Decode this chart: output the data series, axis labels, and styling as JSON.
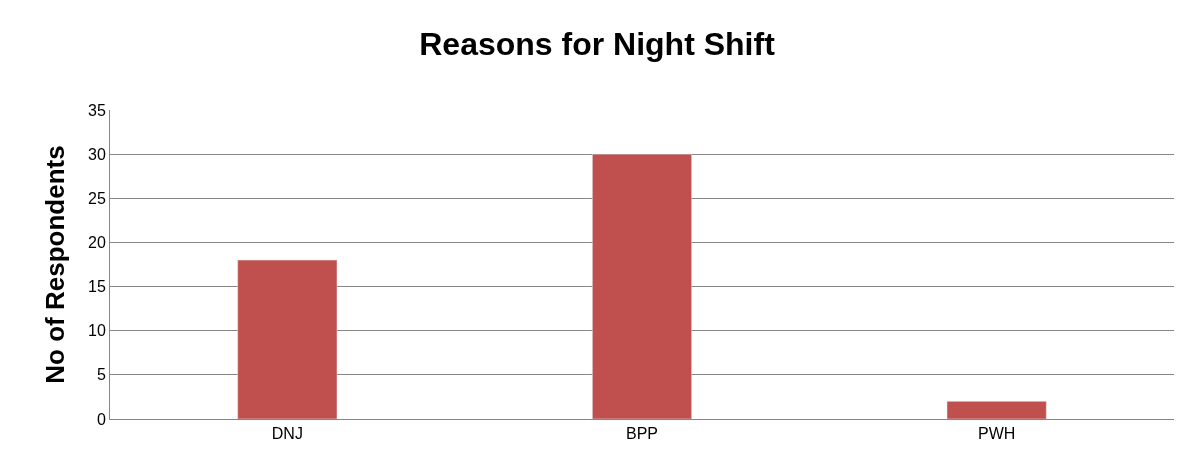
{
  "chart_data": {
    "type": "bar",
    "title": "Reasons for Night Shift",
    "ylabel": "No of Respondents",
    "categories": [
      "DNJ",
      "BPP",
      "PWH"
    ],
    "values": [
      18,
      30,
      2
    ],
    "color": "#c0504d",
    "ylim": [
      0,
      35
    ],
    "yticks": [
      0,
      5,
      10,
      15,
      20,
      25,
      30,
      35
    ],
    "grid": "y"
  }
}
